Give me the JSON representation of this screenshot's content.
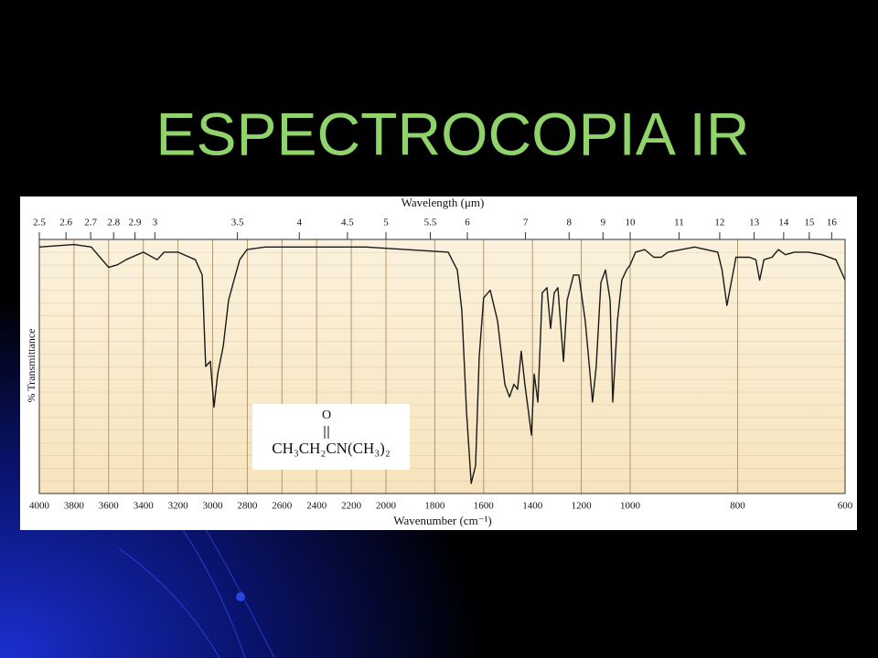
{
  "slide_title": "ESPECTROCOPIA IR",
  "chart_data": {
    "type": "line",
    "xlabel": "Wavenumber (cm⁻¹)",
    "x2label": "Wavelength (μm)",
    "ylabel": "% Transmittance",
    "structure_top": "O",
    "structure_formula": "CH₃CH₂CN(CH₃)₂",
    "xlim": [
      4000,
      600
    ],
    "xscale_breaks": [
      4000,
      2000,
      1000,
      600
    ],
    "xticks": [
      4000,
      3800,
      3600,
      3400,
      3200,
      3000,
      2800,
      2600,
      2400,
      2200,
      2000,
      1800,
      1600,
      1400,
      1200,
      1000,
      800,
      600
    ],
    "x2ticks": [
      2.5,
      2.6,
      2.7,
      2.8,
      2.9,
      3,
      3.5,
      4,
      4.5,
      5,
      5.5,
      6,
      7,
      8,
      9,
      10,
      11,
      12,
      13,
      14,
      15,
      16
    ],
    "ylim": [
      0,
      100
    ],
    "grid": true,
    "color": "#1a1a1a",
    "x": [
      4000,
      3800,
      3700,
      3650,
      3600,
      3550,
      3500,
      3400,
      3320,
      3280,
      3200,
      3100,
      3060,
      3040,
      3013,
      2992,
      2971,
      2939,
      2908,
      2881,
      2844,
      2802,
      2697,
      2116,
      1745,
      1708,
      1689,
      1670,
      1651,
      1633,
      1618,
      1600,
      1573,
      1543,
      1513,
      1494,
      1476,
      1461,
      1446,
      1431,
      1416,
      1404,
      1393,
      1378,
      1360,
      1341,
      1326,
      1311,
      1296,
      1273,
      1258,
      1232,
      1210,
      1184,
      1154,
      1139,
      1120,
      1101,
      1082,
      1071,
      1052,
      1034,
      1015,
      1000,
      990,
      973,
      956,
      942,
      930,
      880,
      837,
      829,
      820,
      812,
      803,
      778,
      766,
      759,
      751,
      736,
      724,
      711,
      694,
      668,
      643,
      617,
      600
    ],
    "values": [
      97,
      98,
      97,
      93,
      89,
      90,
      92,
      95,
      92,
      95,
      95,
      92,
      86,
      50,
      52,
      34,
      47,
      58,
      76,
      83,
      92,
      96,
      97,
      97,
      95,
      88,
      72,
      32,
      4,
      11,
      54,
      77,
      80,
      68,
      43,
      38,
      43,
      41,
      56,
      43,
      32,
      23,
      47,
      36,
      79,
      81,
      65,
      79,
      81,
      52,
      76,
      86,
      86,
      68,
      36,
      50,
      83,
      88,
      76,
      36,
      68,
      84,
      88,
      90,
      95,
      96,
      93,
      93,
      95,
      97,
      95,
      88,
      74,
      83,
      93,
      93,
      92,
      84,
      92,
      93,
      96,
      94,
      95,
      95,
      94,
      92,
      84
    ]
  }
}
